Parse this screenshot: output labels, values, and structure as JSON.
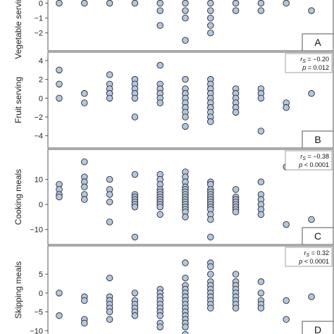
{
  "chart_data": [
    {
      "type": "scatter",
      "panel_letter": "A",
      "ylabel": "Vegetable serving",
      "ylim": [
        -3.2,
        0.5
      ],
      "yticks": [
        0,
        -1,
        -2
      ],
      "x": [
        1,
        2,
        3,
        4,
        5,
        6,
        7,
        8,
        9,
        10,
        11
      ],
      "series": [
        {
          "points": [
            [
              1,
              0
            ],
            [
              2,
              0
            ],
            [
              3,
              0
            ],
            [
              4,
              0
            ],
            [
              5,
              0
            ],
            [
              5,
              -0.5
            ],
            [
              5,
              -1.5
            ],
            [
              6,
              0
            ],
            [
              6,
              -0.5
            ],
            [
              6,
              -1
            ],
            [
              6,
              -2.5
            ],
            [
              7,
              0
            ],
            [
              7,
              -0.5
            ],
            [
              7,
              -1
            ],
            [
              7,
              -1.5
            ],
            [
              7,
              -2
            ],
            [
              8,
              0
            ],
            [
              8,
              -0.5
            ],
            [
              9,
              0
            ],
            [
              9,
              -0.5
            ],
            [
              10,
              0
            ],
            [
              11,
              -0.5
            ]
          ]
        }
      ]
    },
    {
      "type": "scatter",
      "panel_letter": "B",
      "ylabel": "Fruit serving",
      "stat_rs": "= −0.20",
      "stat_p": "= 0.012",
      "ylim": [
        -5.3,
        4.9
      ],
      "yticks": [
        4,
        2,
        0,
        -2,
        -4
      ],
      "x": [
        1,
        2,
        3,
        4,
        5,
        6,
        7,
        8,
        9,
        10,
        11
      ],
      "series": [
        {
          "points": [
            [
              1,
              3
            ],
            [
              1,
              1.5
            ],
            [
              1,
              0
            ],
            [
              2,
              0.5
            ],
            [
              2,
              -0.5
            ],
            [
              3,
              2.5
            ],
            [
              3,
              1.5
            ],
            [
              3,
              1
            ],
            [
              3,
              0.5
            ],
            [
              3,
              0
            ],
            [
              4,
              2
            ],
            [
              4,
              1.5
            ],
            [
              4,
              1
            ],
            [
              4,
              0.5
            ],
            [
              4,
              0
            ],
            [
              4,
              -2
            ],
            [
              5,
              3.5
            ],
            [
              5,
              1.5
            ],
            [
              5,
              1
            ],
            [
              5,
              0.5
            ],
            [
              5,
              0
            ],
            [
              5,
              -0.5
            ],
            [
              6,
              2
            ],
            [
              6,
              1
            ],
            [
              6,
              0.5
            ],
            [
              6,
              0
            ],
            [
              6,
              -0.5
            ],
            [
              6,
              -1
            ],
            [
              6,
              -1.5
            ],
            [
              6,
              -2
            ],
            [
              6,
              -3
            ],
            [
              7,
              2
            ],
            [
              7,
              1.5
            ],
            [
              7,
              1
            ],
            [
              7,
              0.5
            ],
            [
              7,
              0
            ],
            [
              7,
              -0.5
            ],
            [
              7,
              -1
            ],
            [
              7,
              -1.5
            ],
            [
              7,
              -2
            ],
            [
              7,
              -2.5
            ],
            [
              8,
              1
            ],
            [
              8,
              0.5
            ],
            [
              8,
              0
            ],
            [
              8,
              -0.5
            ],
            [
              8,
              -1
            ],
            [
              8,
              -1.5
            ],
            [
              9,
              1
            ],
            [
              9,
              0.5
            ],
            [
              9,
              0
            ],
            [
              9,
              -3.5
            ],
            [
              10,
              -0.5
            ],
            [
              10,
              -1
            ],
            [
              11,
              0.5
            ]
          ]
        }
      ]
    },
    {
      "type": "scatter",
      "panel_letter": "C",
      "ylabel": "Cooking meals",
      "stat_rs": "= −0.38",
      "stat_p": "< 0.0001",
      "ylim": [
        -16,
        22
      ],
      "yticks": [
        10,
        0,
        -10
      ],
      "x": [
        1,
        2,
        3,
        4,
        5,
        6,
        7,
        8,
        9,
        10,
        11
      ],
      "series": [
        {
          "points": [
            [
              1,
              8
            ],
            [
              1,
              6
            ],
            [
              1,
              4
            ],
            [
              1,
              3
            ],
            [
              2,
              17
            ],
            [
              2,
              11
            ],
            [
              2,
              9
            ],
            [
              2,
              7
            ],
            [
              2,
              4
            ],
            [
              2,
              2
            ],
            [
              3,
              10
            ],
            [
              3,
              6
            ],
            [
              3,
              4
            ],
            [
              3,
              1
            ],
            [
              3,
              -7
            ],
            [
              4,
              12
            ],
            [
              4,
              4
            ],
            [
              4,
              3
            ],
            [
              4,
              2
            ],
            [
              4,
              1
            ],
            [
              4,
              0
            ],
            [
              4,
              -1
            ],
            [
              4,
              -13
            ],
            [
              5,
              12
            ],
            [
              5,
              10
            ],
            [
              5,
              8
            ],
            [
              5,
              6
            ],
            [
              5,
              5
            ],
            [
              5,
              4
            ],
            [
              5,
              3
            ],
            [
              5,
              2
            ],
            [
              5,
              1
            ],
            [
              5,
              0
            ],
            [
              5,
              -1
            ],
            [
              5,
              -4
            ],
            [
              6,
              13
            ],
            [
              6,
              11
            ],
            [
              6,
              9
            ],
            [
              6,
              7
            ],
            [
              6,
              6
            ],
            [
              6,
              5
            ],
            [
              6,
              4
            ],
            [
              6,
              3
            ],
            [
              6,
              2
            ],
            [
              6,
              1
            ],
            [
              6,
              0
            ],
            [
              6,
              -1
            ],
            [
              6,
              -2
            ],
            [
              6,
              -3
            ],
            [
              6,
              -5
            ],
            [
              7,
              9
            ],
            [
              7,
              8
            ],
            [
              7,
              6
            ],
            [
              7,
              5
            ],
            [
              7,
              4
            ],
            [
              7,
              3
            ],
            [
              7,
              2
            ],
            [
              7,
              1
            ],
            [
              7,
              0
            ],
            [
              7,
              -1
            ],
            [
              7,
              -2
            ],
            [
              7,
              -4
            ],
            [
              7,
              -6
            ],
            [
              7,
              -13
            ],
            [
              8,
              6
            ],
            [
              8,
              3
            ],
            [
              8,
              2
            ],
            [
              8,
              1
            ],
            [
              8,
              0
            ],
            [
              8,
              -1
            ],
            [
              8,
              -2
            ],
            [
              8,
              -3
            ],
            [
              9,
              9
            ],
            [
              9,
              4
            ],
            [
              9,
              2
            ],
            [
              9,
              0
            ],
            [
              9,
              -2
            ],
            [
              9,
              -4
            ],
            [
              10,
              15
            ],
            [
              10,
              -8
            ],
            [
              11,
              -6
            ]
          ]
        }
      ]
    },
    {
      "type": "scatter",
      "panel_letter": "D",
      "ylabel": "Skipping meals",
      "stat_rs": "= 0.32",
      "stat_p": "< 0.0001",
      "ylim": [
        -12,
        12.5
      ],
      "yticks": [
        5,
        0,
        -5,
        -10
      ],
      "x": [
        1,
        2,
        3,
        4,
        5,
        6,
        7,
        8,
        9,
        10,
        11
      ],
      "series": [
        {
          "points": [
            [
              1,
              0
            ],
            [
              1,
              -6
            ],
            [
              2,
              -1
            ],
            [
              2,
              -2
            ],
            [
              2,
              -7
            ],
            [
              2,
              -8
            ],
            [
              3,
              4
            ],
            [
              3,
              -1
            ],
            [
              3,
              -2
            ],
            [
              3,
              -3
            ],
            [
              3,
              -4
            ],
            [
              3,
              -5
            ],
            [
              3,
              -7
            ],
            [
              4,
              0
            ],
            [
              4,
              -2
            ],
            [
              4,
              -3
            ],
            [
              4,
              -4
            ],
            [
              4,
              -5
            ],
            [
              4,
              -6
            ],
            [
              5,
              1
            ],
            [
              5,
              0
            ],
            [
              5,
              -1
            ],
            [
              5,
              -2
            ],
            [
              5,
              -3
            ],
            [
              5,
              -4
            ],
            [
              5,
              -5
            ],
            [
              5,
              -6
            ],
            [
              5,
              -8
            ],
            [
              5,
              -9
            ],
            [
              6,
              8
            ],
            [
              6,
              4
            ],
            [
              6,
              2
            ],
            [
              6,
              1
            ],
            [
              6,
              0
            ],
            [
              6,
              -1
            ],
            [
              6,
              -2
            ],
            [
              6,
              -3
            ],
            [
              6,
              -4
            ],
            [
              6,
              -5
            ],
            [
              6,
              -6
            ],
            [
              6,
              -7
            ],
            [
              6,
              -8
            ],
            [
              6,
              -9
            ],
            [
              6,
              -11
            ],
            [
              7,
              8
            ],
            [
              7,
              7
            ],
            [
              7,
              5
            ],
            [
              7,
              3
            ],
            [
              7,
              2
            ],
            [
              7,
              1
            ],
            [
              7,
              0
            ],
            [
              7,
              -1
            ],
            [
              7,
              -2
            ],
            [
              7,
              -3
            ],
            [
              7,
              -4
            ],
            [
              8,
              5
            ],
            [
              8,
              3
            ],
            [
              8,
              2
            ],
            [
              8,
              1
            ],
            [
              8,
              0
            ],
            [
              8,
              -1
            ],
            [
              8,
              -2
            ],
            [
              8,
              -3
            ],
            [
              8,
              -4
            ],
            [
              9,
              3
            ],
            [
              9,
              0
            ],
            [
              9,
              -2
            ],
            [
              9,
              -3
            ],
            [
              9,
              -4
            ],
            [
              10,
              -2
            ],
            [
              10,
              -7
            ],
            [
              11,
              -1
            ]
          ]
        }
      ]
    }
  ],
  "style": {
    "marker_fill": "#b3c6e2",
    "marker_stroke": "#2b2b2b",
    "frame_color": "#555555",
    "background": "#ffffff"
  }
}
